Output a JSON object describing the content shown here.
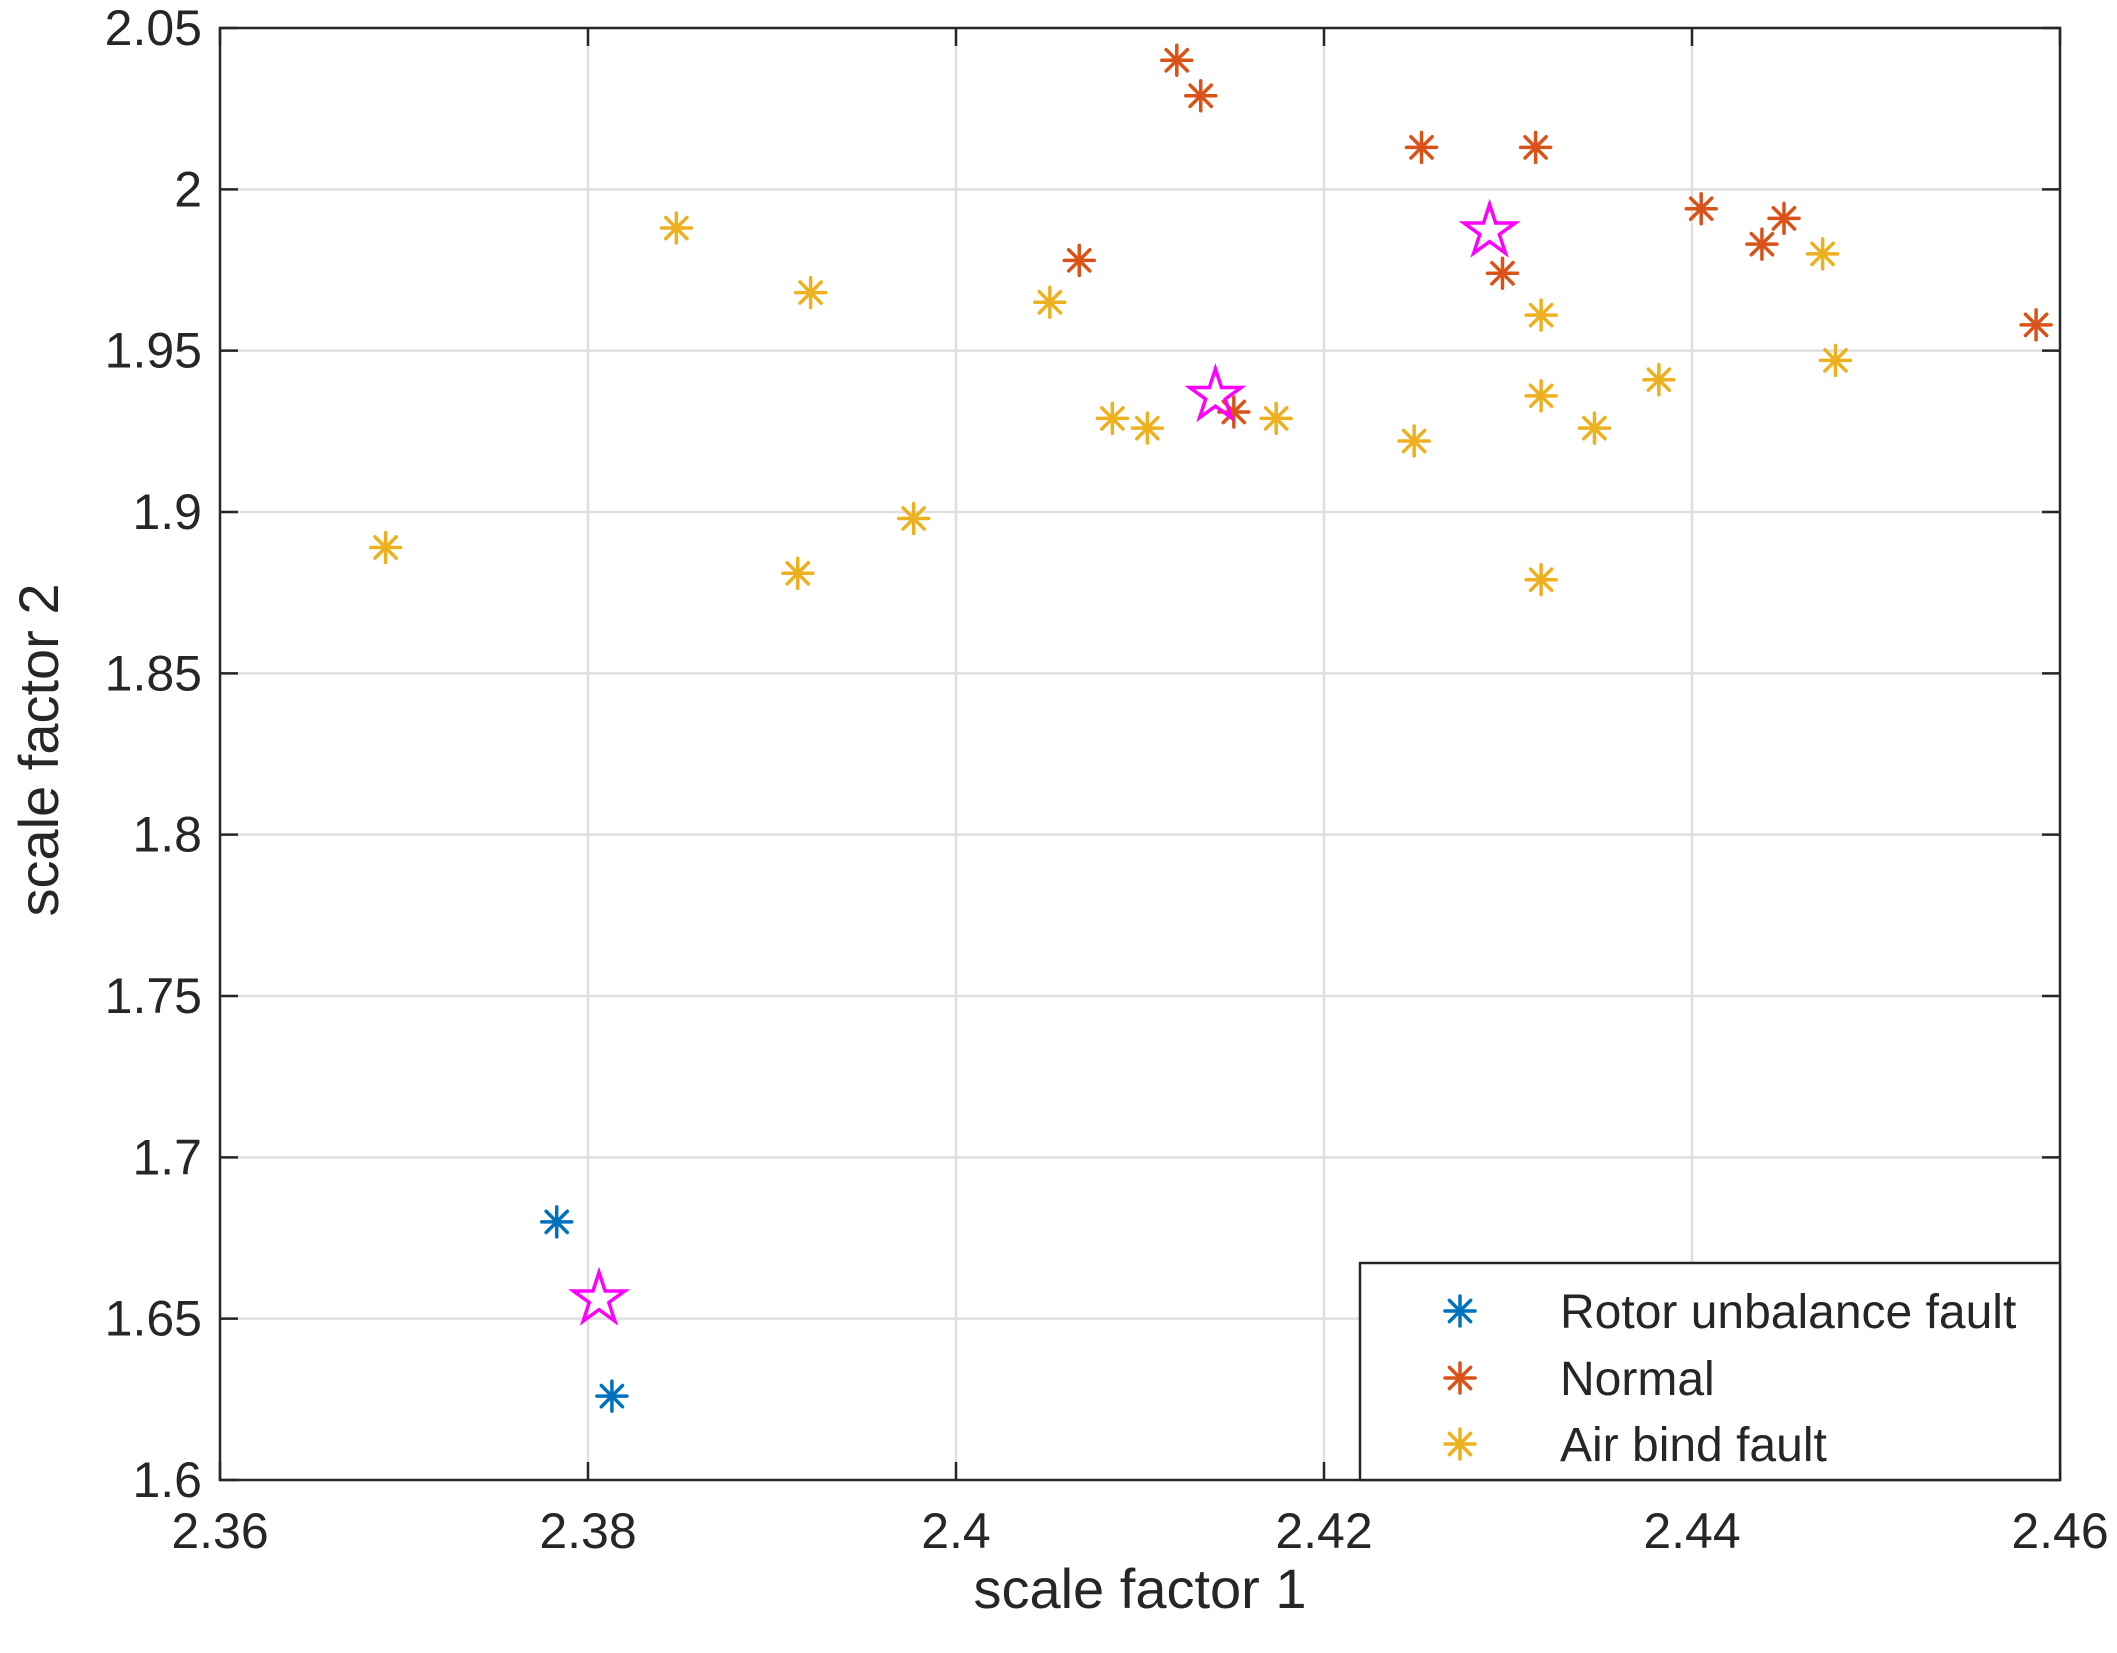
{
  "chart_data": {
    "type": "scatter",
    "title": "",
    "xlabel": "scale factor 1",
    "ylabel": "scale factor 2",
    "xlim": [
      2.36,
      2.46
    ],
    "ylim": [
      1.6,
      2.05
    ],
    "xticks": [
      2.36,
      2.38,
      2.4,
      2.42,
      2.44,
      2.46
    ],
    "xtick_labels": [
      "2.36",
      "2.38",
      "2.4",
      "2.42",
      "2.44",
      "2.46"
    ],
    "yticks": [
      1.6,
      1.65,
      1.7,
      1.75,
      1.8,
      1.85,
      1.9,
      1.95,
      2.0,
      2.05
    ],
    "ytick_labels": [
      "1.6",
      "1.65",
      "1.7",
      "1.75",
      "1.8",
      "1.85",
      "1.9",
      "1.95",
      "2",
      "2.05"
    ],
    "grid": true,
    "legend_position": "bottom-right",
    "series": [
      {
        "name": "Rotor unbalance fault",
        "marker": "asterisk",
        "color": "#0072BD",
        "points": [
          [
            2.3783,
            1.68
          ],
          [
            2.3813,
            1.626
          ]
        ]
      },
      {
        "name": "Normal",
        "marker": "asterisk",
        "color": "#D95319",
        "points": [
          [
            2.412,
            2.04
          ],
          [
            2.4133,
            2.029
          ],
          [
            2.4253,
            2.013
          ],
          [
            2.4315,
            2.013
          ],
          [
            2.4405,
            1.994
          ],
          [
            2.445,
            1.991
          ],
          [
            2.4438,
            1.983
          ],
          [
            2.4067,
            1.978
          ],
          [
            2.4297,
            1.974
          ],
          [
            2.4587,
            1.958
          ],
          [
            2.4151,
            1.931
          ]
        ]
      },
      {
        "name": "Air bind fault",
        "marker": "asterisk",
        "color": "#EDB120",
        "points": [
          [
            2.3848,
            1.988
          ],
          [
            2.3921,
            1.968
          ],
          [
            2.4051,
            1.965
          ],
          [
            2.4318,
            1.961
          ],
          [
            2.4471,
            1.98
          ],
          [
            2.4478,
            1.947
          ],
          [
            2.4382,
            1.941
          ],
          [
            2.4318,
            1.936
          ],
          [
            2.4085,
            1.929
          ],
          [
            2.4104,
            1.926
          ],
          [
            2.4174,
            1.929
          ],
          [
            2.4347,
            1.926
          ],
          [
            2.4249,
            1.922
          ],
          [
            2.3977,
            1.898
          ],
          [
            2.369,
            1.889
          ],
          [
            2.3914,
            1.881
          ],
          [
            2.4318,
            1.879
          ]
        ]
      }
    ],
    "centroids": {
      "marker": "pentagram",
      "color": "#FF00FF",
      "points": [
        [
          2.3806,
          1.656
        ],
        [
          2.4141,
          1.936
        ],
        [
          2.429,
          1.987
        ]
      ]
    }
  }
}
